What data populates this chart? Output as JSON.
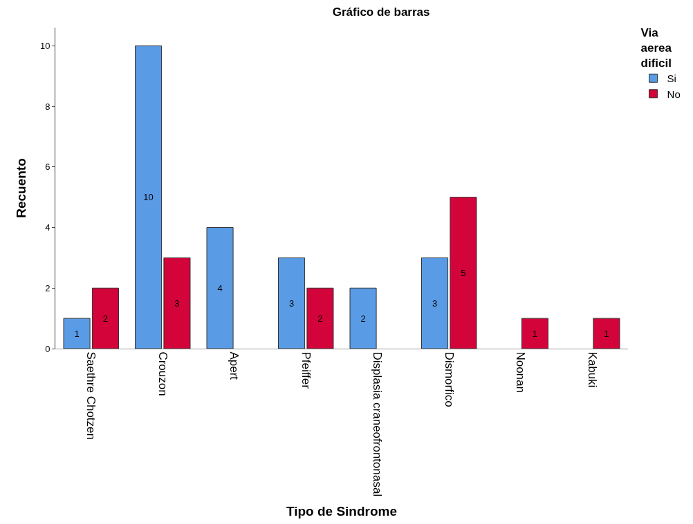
{
  "chart_data": {
    "type": "bar",
    "title": "Gráfico de barras",
    "xlabel": "Tipo de Sindrome",
    "ylabel": "Recuento",
    "legend_title": "Via aerea dificil",
    "categories": [
      "Saethre Chotzen",
      "Crouzon",
      "Apert",
      "Pfeiffer",
      "Displasia craneofrontonasal",
      "Dismorfico",
      "Noonan",
      "Kabuki"
    ],
    "series": [
      {
        "name": "Si",
        "color": "#5a9be6",
        "values": [
          1,
          10,
          4,
          3,
          2,
          3,
          null,
          null
        ]
      },
      {
        "name": "No",
        "color": "#d2043a",
        "values": [
          2,
          3,
          null,
          2,
          null,
          5,
          1,
          1
        ]
      }
    ],
    "ylim": [
      0,
      10.6
    ],
    "yticks": [
      0,
      2,
      4,
      6,
      8,
      10
    ],
    "grid": false,
    "legend": "top right",
    "data_labels": true
  }
}
